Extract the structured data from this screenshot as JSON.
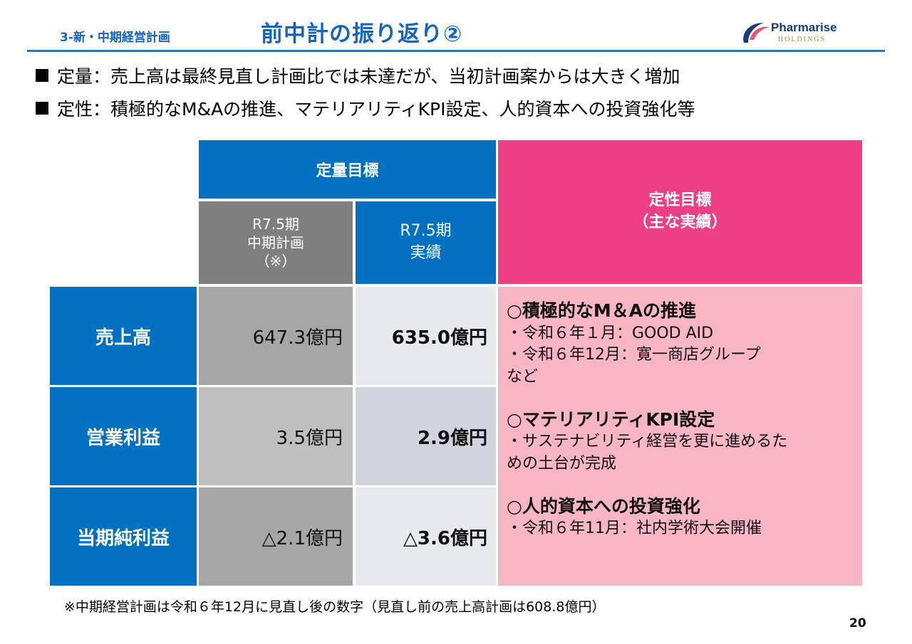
{
  "header": {
    "section_label": "3-新・中期経営計画",
    "title": "前中計の振り返り②",
    "logo_text": "Pharmarise",
    "logo_sub": "HOLDINGS"
  },
  "bullets": [
    "定量：売上高は最終見直し計画比では未達だが、当初計画案からは大きく増加",
    "定性：積極的なM&Aの推進、マテリアリティKPI設定、人的資本への投資強化等"
  ],
  "table": {
    "quant_header": "定量目標",
    "qual_header_line1": "定性目標",
    "qual_header_line2": "（主な実績）",
    "plan_header": [
      "R7.5期",
      "中期計画",
      "（※）"
    ],
    "actual_header": [
      "R7.5期",
      "実績"
    ],
    "rows": [
      {
        "label": "売上高",
        "plan": "647.3億円",
        "actual": "635.0億円"
      },
      {
        "label": "営業利益",
        "plan": "3.5億円",
        "actual": "2.9億円"
      },
      {
        "label": "当期純利益",
        "plan": "△2.1億円",
        "actual": "△3.6億円"
      }
    ],
    "qualitative": [
      {
        "heading": "○積極的なM＆Aの推進",
        "lines": [
          "・令和６年１月：GOOD AID",
          "・令和６年12月：寛一商店グループ",
          "など"
        ]
      },
      {
        "heading": "○マテリアリティKPI設定",
        "lines": [
          "・サステナビリティ経営を更に進めるた",
          "めの土台が完成"
        ]
      },
      {
        "heading": "○人的資本への投資強化",
        "lines": [
          "・令和６年11月：社内学術大会開催"
        ]
      }
    ]
  },
  "footnote": "※中期経営計画は令和６年12月に見直し後の数字（見直し前の売上高計画は608.8億円）",
  "page_number": "20",
  "colors": {
    "accent_blue": "#0070c0",
    "accent_pink": "#ee3f86",
    "pink_light": "#f8b6c5",
    "title_blue": "#1565c0"
  },
  "icons": {
    "logo": "pharmarise-swoosh-icon"
  }
}
